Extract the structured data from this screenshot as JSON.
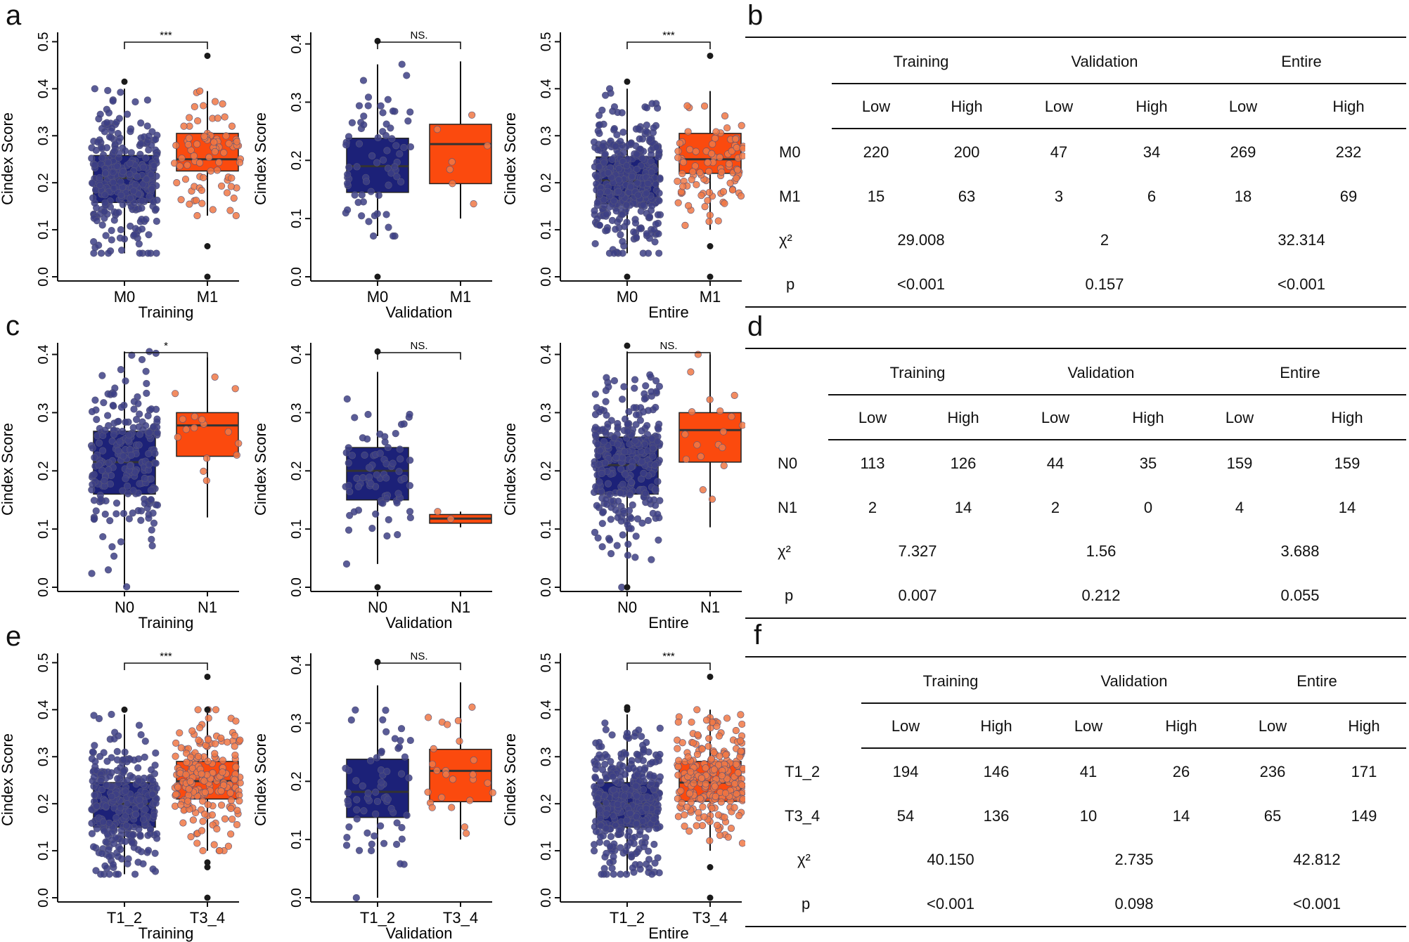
{
  "figure": {
    "panel_labels": [
      "a",
      "b",
      "c",
      "d",
      "e",
      "f"
    ],
    "colors": {
      "low": "#1c2178",
      "high": "#fb4a0e",
      "low_dot": "#3d3f85",
      "high_dot": "#f07845",
      "outlier": "#1a1a1a"
    }
  },
  "chart_data": [
    {
      "id": "a1",
      "type": "boxplot",
      "panel": "a",
      "ylabel": "Cindex Score",
      "xlabel": "Training",
      "categories": [
        "M0",
        "M1"
      ],
      "ylim": [
        0,
        0.5
      ],
      "yticks": [
        0.0,
        0.1,
        0.2,
        0.3,
        0.4,
        0.5
      ],
      "sig": "***",
      "boxes": [
        {
          "q1": 0.158,
          "median": 0.21,
          "q3": 0.258,
          "whisker_low": 0.05,
          "whisker_high": 0.4,
          "outliers": [
            0.415
          ]
        },
        {
          "q1": 0.225,
          "median": 0.25,
          "q3": 0.305,
          "whisker_low": 0.13,
          "whisker_high": 0.395,
          "outliers": [
            0.47,
            0.065,
            0.0
          ]
        }
      ],
      "n_points": [
        300,
        80
      ]
    },
    {
      "id": "a2",
      "type": "boxplot",
      "panel": "a",
      "ylabel": "Cindex Score",
      "xlabel": "Validation",
      "categories": [
        "M0",
        "M1"
      ],
      "ylim": [
        0,
        0.4
      ],
      "yticks": [
        0.0,
        0.1,
        0.2,
        0.3,
        0.4
      ],
      "sig": "NS.",
      "boxes": [
        {
          "q1": 0.145,
          "median": 0.19,
          "q3": 0.238,
          "whisker_low": 0.07,
          "whisker_high": 0.365,
          "outliers": [
            0.405,
            0.0
          ]
        },
        {
          "q1": 0.16,
          "median": 0.228,
          "q3": 0.262,
          "whisker_low": 0.1,
          "whisker_high": 0.37,
          "outliers": []
        }
      ],
      "n_points": [
        70,
        7
      ]
    },
    {
      "id": "a3",
      "type": "boxplot",
      "panel": "a",
      "ylabel": "Cindex Score",
      "xlabel": "Entire",
      "categories": [
        "M0",
        "M1"
      ],
      "ylim": [
        0,
        0.5
      ],
      "yticks": [
        0.0,
        0.1,
        0.2,
        0.3,
        0.4,
        0.5
      ],
      "sig": "***",
      "boxes": [
        {
          "q1": 0.155,
          "median": 0.205,
          "q3": 0.255,
          "whisker_low": 0.05,
          "whisker_high": 0.4,
          "outliers": [
            0.415,
            0.0
          ]
        },
        {
          "q1": 0.22,
          "median": 0.25,
          "q3": 0.305,
          "whisker_low": 0.1,
          "whisker_high": 0.395,
          "outliers": [
            0.47,
            0.065,
            0.0
          ]
        }
      ],
      "n_points": [
        380,
        90
      ]
    },
    {
      "id": "c1",
      "type": "boxplot",
      "panel": "c",
      "ylabel": "Cindex Score",
      "xlabel": "Training",
      "categories": [
        "N0",
        "N1"
      ],
      "ylim": [
        0,
        0.4
      ],
      "yticks": [
        0.0,
        0.1,
        0.2,
        0.3,
        0.4
      ],
      "sig": "*",
      "boxes": [
        {
          "q1": 0.16,
          "median": 0.215,
          "q3": 0.268,
          "whisker_low": 0.0,
          "whisker_high": 0.405,
          "outliers": []
        },
        {
          "q1": 0.225,
          "median": 0.278,
          "q3": 0.3,
          "whisker_low": 0.12,
          "whisker_high": 0.395,
          "outliers": []
        }
      ],
      "n_points": [
        220,
        16
      ]
    },
    {
      "id": "c2",
      "type": "boxplot",
      "panel": "c",
      "ylabel": "Cindex Score",
      "xlabel": "Validation",
      "categories": [
        "N0",
        "N1"
      ],
      "ylim": [
        0,
        0.4
      ],
      "yticks": [
        0.0,
        0.1,
        0.2,
        0.3,
        0.4
      ],
      "sig": "NS.",
      "boxes": [
        {
          "q1": 0.15,
          "median": 0.2,
          "q3": 0.24,
          "whisker_low": 0.04,
          "whisker_high": 0.37,
          "outliers": [
            0.405,
            0.0
          ]
        },
        {
          "q1": 0.11,
          "median": 0.118,
          "q3": 0.125,
          "whisker_low": 0.103,
          "whisker_high": 0.13,
          "outliers": []
        }
      ],
      "n_points": [
        75,
        2
      ]
    },
    {
      "id": "c3",
      "type": "boxplot",
      "panel": "c",
      "ylabel": "Cindex Score",
      "xlabel": "Entire",
      "categories": [
        "N0",
        "N1"
      ],
      "ylim": [
        0,
        0.4
      ],
      "yticks": [
        0.0,
        0.1,
        0.2,
        0.3,
        0.4
      ],
      "sig": "NS.",
      "boxes": [
        {
          "q1": 0.16,
          "median": 0.21,
          "q3": 0.258,
          "whisker_low": 0.0,
          "whisker_high": 0.405,
          "outliers": [
            0.415,
            0.0
          ]
        },
        {
          "q1": 0.215,
          "median": 0.27,
          "q3": 0.3,
          "whisker_low": 0.103,
          "whisker_high": 0.4,
          "outliers": []
        }
      ],
      "n_points": [
        300,
        18
      ]
    },
    {
      "id": "e1",
      "type": "boxplot",
      "panel": "e",
      "ylabel": "Cindex Score",
      "xlabel": "Training",
      "categories": [
        "T1_2",
        "T3_4"
      ],
      "ylim": [
        0,
        0.5
      ],
      "yticks": [
        0.0,
        0.1,
        0.2,
        0.3,
        0.4,
        0.5
      ],
      "sig": "***",
      "boxes": [
        {
          "q1": 0.15,
          "median": 0.2,
          "q3": 0.245,
          "whisker_low": 0.05,
          "whisker_high": 0.39,
          "outliers": [
            0.4
          ]
        },
        {
          "q1": 0.21,
          "median": 0.248,
          "q3": 0.29,
          "whisker_low": 0.1,
          "whisker_high": 0.4,
          "outliers": [
            0.47,
            0.4,
            0.075,
            0.065,
            0.0
          ]
        }
      ],
      "n_points": [
        300,
        190
      ]
    },
    {
      "id": "e2",
      "type": "boxplot",
      "panel": "e",
      "ylabel": "Cindex Score",
      "xlabel": "Validation",
      "categories": [
        "T1_2",
        "T3_4"
      ],
      "ylim": [
        0,
        0.4
      ],
      "yticks": [
        0.0,
        0.1,
        0.2,
        0.3,
        0.4
      ],
      "sig": "NS.",
      "boxes": [
        {
          "q1": 0.138,
          "median": 0.182,
          "q3": 0.238,
          "whisker_low": 0.0,
          "whisker_high": 0.365,
          "outliers": [
            0.405
          ]
        },
        {
          "q1": 0.165,
          "median": 0.218,
          "q3": 0.255,
          "whisker_low": 0.1,
          "whisker_high": 0.37,
          "outliers": []
        }
      ],
      "n_points": [
        65,
        25
      ]
    },
    {
      "id": "e3",
      "type": "boxplot",
      "panel": "e",
      "ylabel": "Cindex Score",
      "xlabel": "Entire",
      "categories": [
        "T1_2",
        "T3_4"
      ],
      "ylim": [
        0,
        0.5
      ],
      "yticks": [
        0.0,
        0.1,
        0.2,
        0.3,
        0.4,
        0.5
      ],
      "sig": "***",
      "boxes": [
        {
          "q1": 0.15,
          "median": 0.2,
          "q3": 0.245,
          "whisker_low": 0.05,
          "whisker_high": 0.39,
          "outliers": [
            0.405,
            0.4
          ]
        },
        {
          "q1": 0.205,
          "median": 0.245,
          "q3": 0.29,
          "whisker_low": 0.1,
          "whisker_high": 0.4,
          "outliers": [
            0.47,
            0.065,
            0.0
          ]
        }
      ],
      "n_points": [
        380,
        230
      ]
    }
  ],
  "tables": {
    "b": {
      "label": "b",
      "groups": [
        "Training",
        "Validation",
        "Entire"
      ],
      "subheaders": [
        "Low",
        "High",
        "Low",
        "High",
        "Low",
        "High"
      ],
      "rows": [
        {
          "label": "M0",
          "values": [
            "220",
            "200",
            "47",
            "34",
            "269",
            "232"
          ]
        },
        {
          "label": "M1",
          "values": [
            "15",
            "63",
            "3",
            "6",
            "18",
            "69"
          ]
        }
      ],
      "chi_label": "χ²",
      "chi": [
        "29.008",
        "2",
        "32.314"
      ],
      "p_label": "p",
      "p": [
        "<0.001",
        "0.157",
        "<0.001"
      ]
    },
    "d": {
      "label": "d",
      "groups": [
        "Training",
        "Validation",
        "Entire"
      ],
      "subheaders": [
        "Low",
        "High",
        "Low",
        "High",
        "Low",
        "High"
      ],
      "rows": [
        {
          "label": "N0",
          "values": [
            "113",
            "126",
            "44",
            "35",
            "159",
            "159"
          ]
        },
        {
          "label": "N1",
          "values": [
            "2",
            "14",
            "2",
            "0",
            "4",
            "14"
          ]
        }
      ],
      "chi_label": "χ²",
      "chi": [
        "7.327",
        "1.56",
        "3.688"
      ],
      "p_label": "p",
      "p": [
        "0.007",
        "0.212",
        "0.055"
      ]
    },
    "f": {
      "label": "f",
      "groups": [
        "Training",
        "Validation",
        "Entire"
      ],
      "subheaders": [
        "Low",
        "High",
        "Low",
        "High",
        "Low",
        "High"
      ],
      "rows": [
        {
          "label": "T1_2",
          "values": [
            "194",
            "146",
            "41",
            "26",
            "236",
            "171"
          ]
        },
        {
          "label": "T3_4",
          "values": [
            "54",
            "136",
            "10",
            "14",
            "65",
            "149"
          ]
        }
      ],
      "chi_label": "χ²",
      "chi": [
        "40.150",
        "2.735",
        "42.812"
      ],
      "p_label": "p",
      "p": [
        "<0.001",
        "0.098",
        "<0.001"
      ]
    }
  }
}
